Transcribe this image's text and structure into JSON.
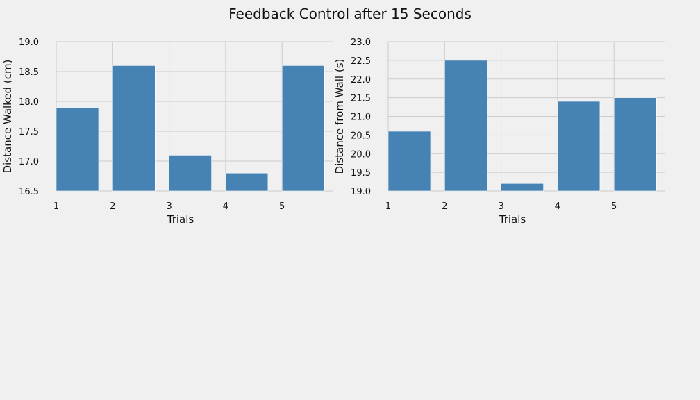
{
  "figure": {
    "title": "Feedback Control after 15 Seconds"
  },
  "chart_data": [
    {
      "type": "bar",
      "categories": [
        "1",
        "2",
        "3",
        "4",
        "5"
      ],
      "values": [
        17.9,
        18.6,
        17.1,
        16.8,
        18.6
      ],
      "xlabel": "Trials",
      "ylabel": "Distance Walked (cm)",
      "ylim": [
        16.5,
        19.0
      ],
      "yticks": [
        "16.5",
        "17.0",
        "17.5",
        "18.0",
        "18.5",
        "19.0"
      ],
      "grid": true,
      "bar_color": "#4682b4"
    },
    {
      "type": "bar",
      "categories": [
        "1",
        "2",
        "3",
        "4",
        "5"
      ],
      "values": [
        20.6,
        22.5,
        19.2,
        21.4,
        21.5
      ],
      "xlabel": "Trials",
      "ylabel": "Distance from Wall (s)",
      "ylim": [
        19.0,
        23.0
      ],
      "yticks": [
        "19.0",
        "19.5",
        "20.0",
        "20.5",
        "21.0",
        "21.5",
        "22.0",
        "22.5",
        "23.0"
      ],
      "grid": true,
      "bar_color": "#4682b4"
    }
  ]
}
